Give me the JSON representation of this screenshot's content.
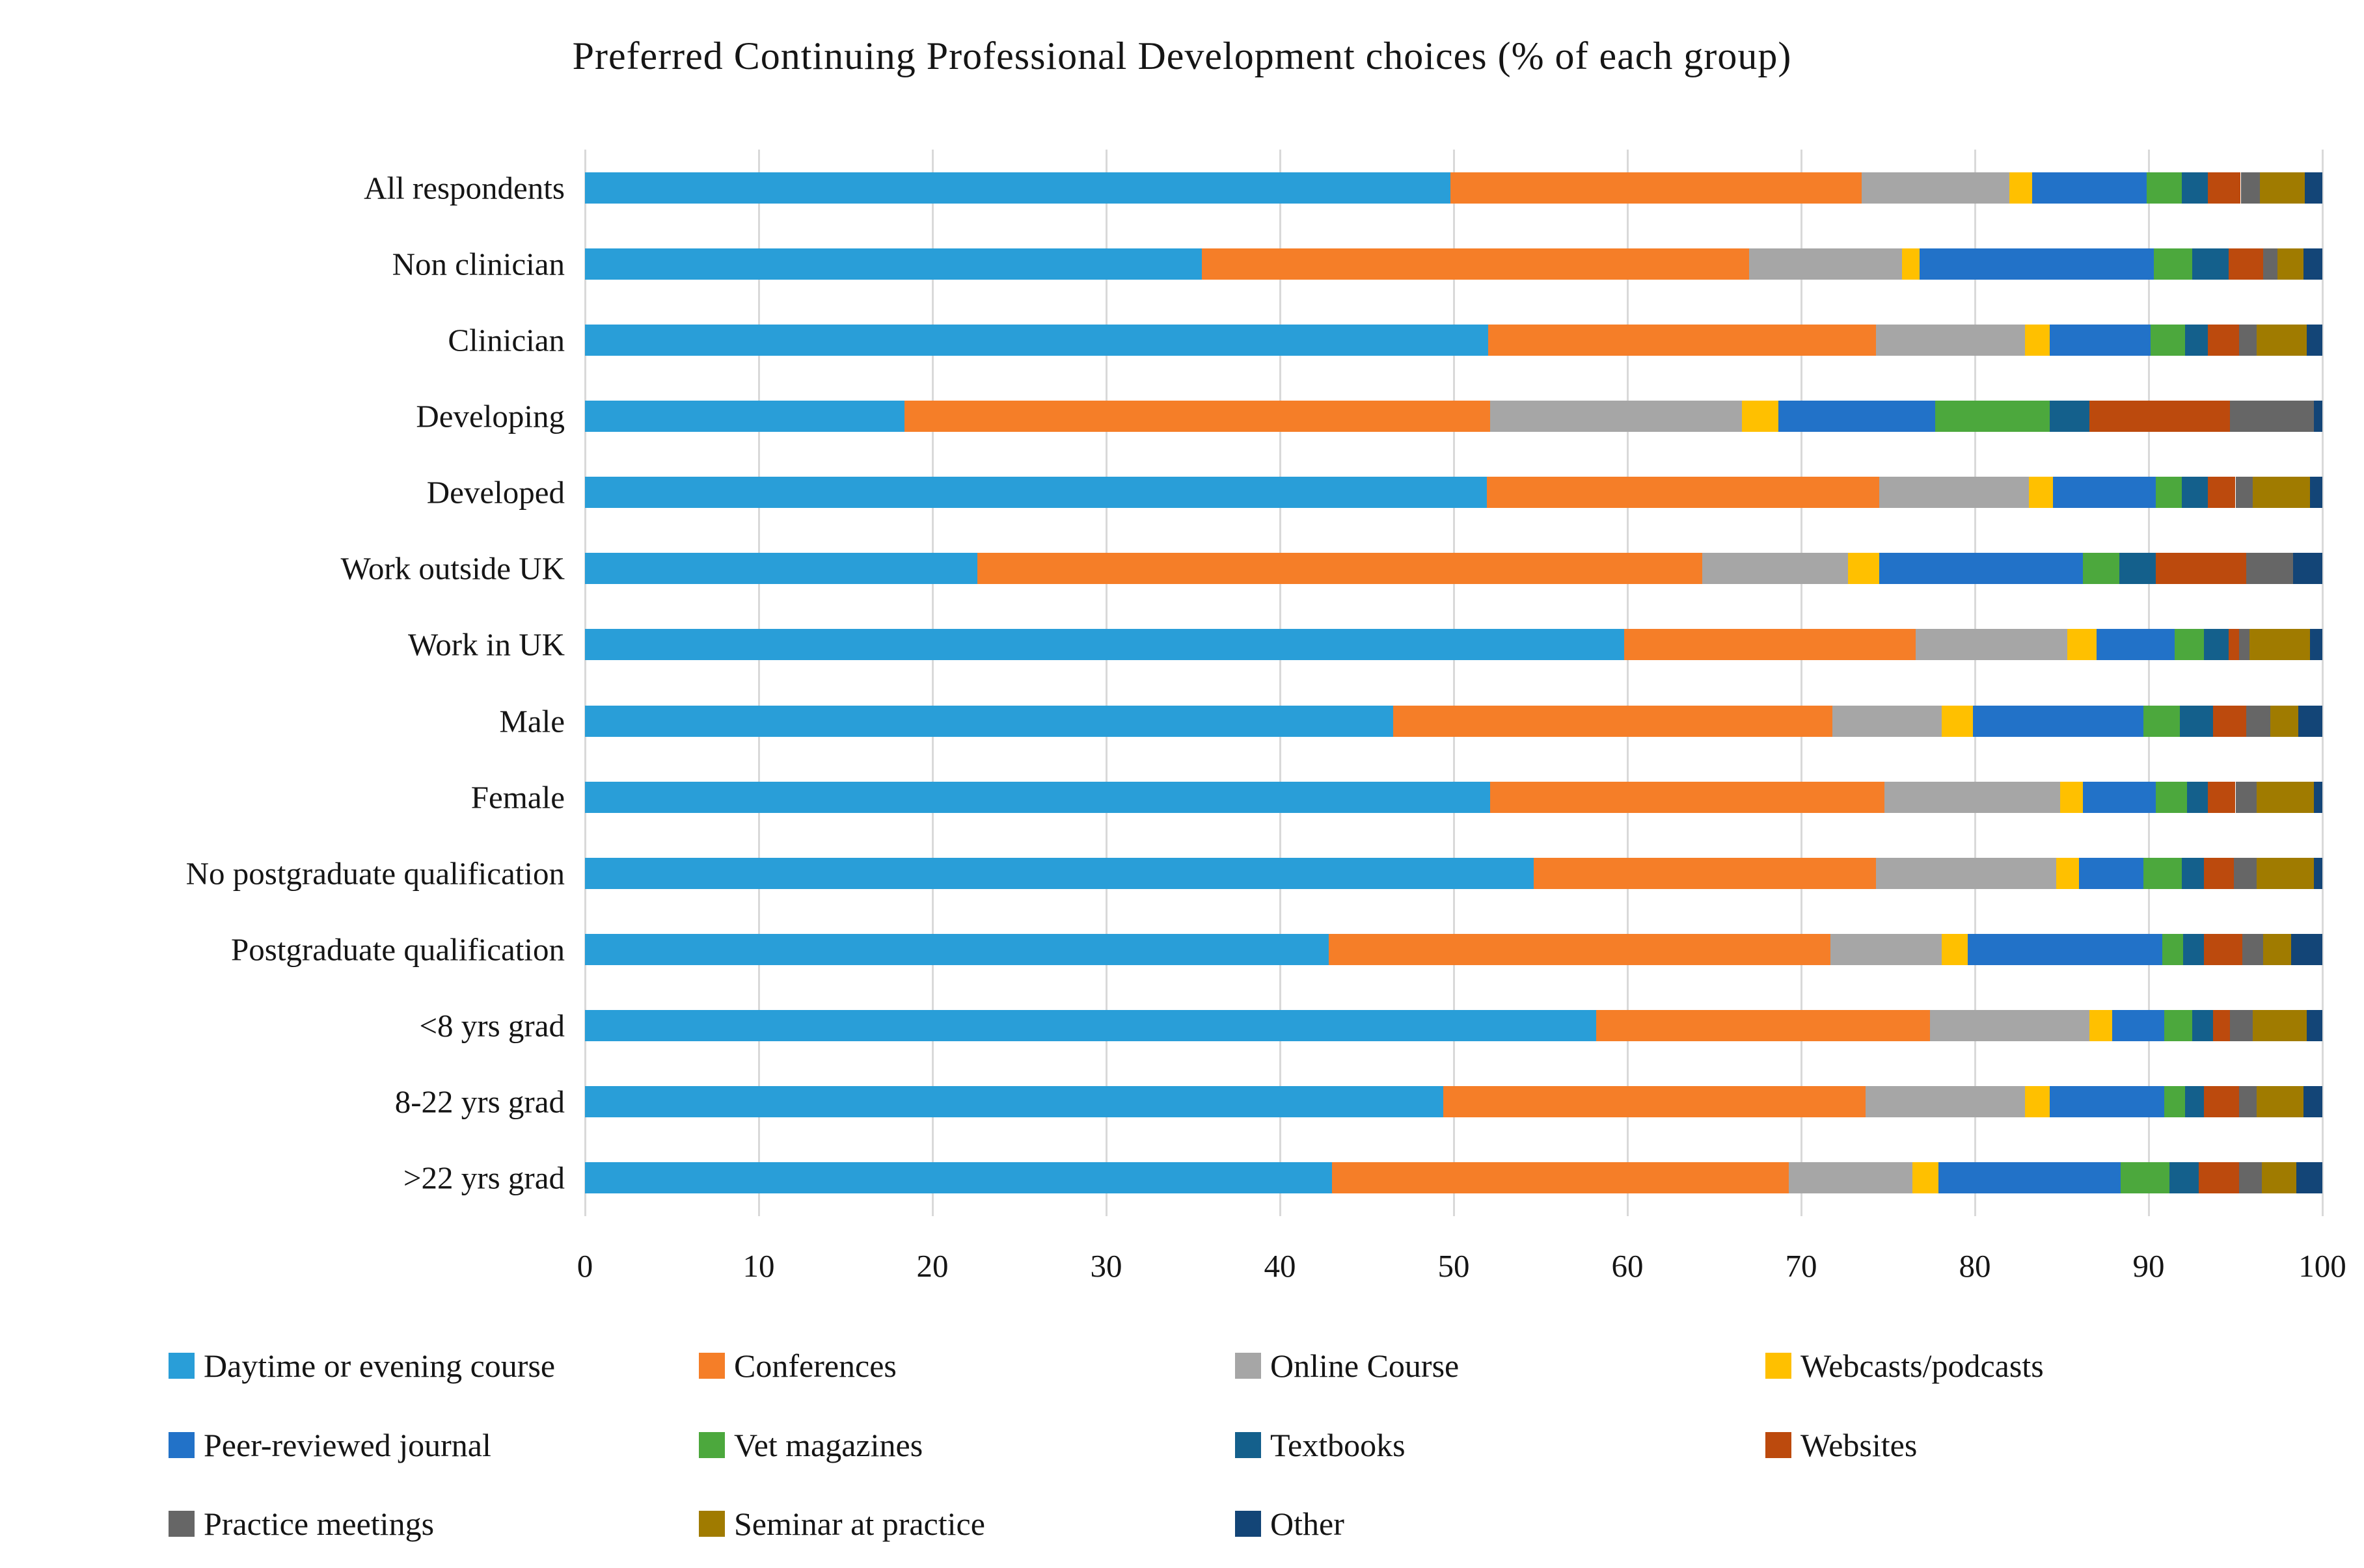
{
  "chart_data": {
    "type": "bar",
    "orientation": "horizontal-stacked",
    "title": "Preferred Continuing Professional Development choices (% of each group)",
    "xlabel": "",
    "ylabel": "",
    "xlim": [
      0,
      100
    ],
    "x_ticks": [
      0,
      10,
      20,
      30,
      40,
      50,
      60,
      70,
      80,
      90,
      100
    ],
    "grid": true,
    "legend_position": "bottom",
    "gridline_color": "#d9d9d9",
    "categories": [
      "All respondents",
      "Non clinician",
      "Clinician",
      "Developing",
      "Developed",
      "Work outside UK",
      "Work in UK",
      "Male",
      "Female",
      "No postgraduate qualification",
      "Postgraduate qualification",
      "<8 yrs grad",
      "8-22 yrs grad",
      ">22 yrs grad"
    ],
    "series": [
      {
        "name": "Daytime or evening course",
        "color": "#299ED8",
        "values": [
          49.8,
          35.5,
          52.0,
          18.4,
          51.9,
          22.6,
          59.8,
          46.5,
          52.1,
          54.6,
          42.8,
          58.2,
          49.4,
          43.0
        ]
      },
      {
        "name": "Conferences",
        "color": "#F57E28",
        "values": [
          23.7,
          31.5,
          22.3,
          33.7,
          22.6,
          41.7,
          16.8,
          25.3,
          22.7,
          19.7,
          28.9,
          19.2,
          24.3,
          26.3
        ]
      },
      {
        "name": "Online Course",
        "color": "#A6A6A6",
        "values": [
          8.5,
          8.8,
          8.6,
          14.5,
          8.6,
          8.4,
          8.7,
          6.3,
          10.1,
          10.4,
          6.4,
          9.2,
          9.2,
          7.1
        ]
      },
      {
        "name": "Webcasts/podcasts",
        "color": "#FFC000",
        "values": [
          1.3,
          1.0,
          1.4,
          2.1,
          1.4,
          1.8,
          1.7,
          1.8,
          1.3,
          1.3,
          1.5,
          1.3,
          1.4,
          1.5
        ]
      },
      {
        "name": "Peer-reviewed journal",
        "color": "#2272C8",
        "values": [
          6.6,
          13.5,
          5.8,
          9.0,
          5.9,
          11.7,
          4.5,
          9.8,
          4.2,
          3.7,
          11.2,
          3.0,
          6.6,
          10.5
        ]
      },
      {
        "name": "Vet magazines",
        "color": "#4CA83D",
        "values": [
          2.0,
          2.2,
          2.0,
          6.6,
          1.5,
          2.1,
          1.7,
          2.1,
          1.8,
          2.2,
          1.2,
          1.6,
          1.2,
          2.8
        ]
      },
      {
        "name": "Textbooks",
        "color": "#14608C",
        "values": [
          1.5,
          2.1,
          1.3,
          2.3,
          1.5,
          2.1,
          1.4,
          1.9,
          1.2,
          1.3,
          1.2,
          1.2,
          1.1,
          1.7
        ]
      },
      {
        "name": "Websites",
        "color": "#BC4A0D",
        "values": [
          1.9,
          2.0,
          1.8,
          8.1,
          1.6,
          5.2,
          0.6,
          1.9,
          1.6,
          1.7,
          2.2,
          1.0,
          2.0,
          2.3
        ]
      },
      {
        "name": "Practice meetings",
        "color": "#666666",
        "values": [
          1.1,
          0.8,
          1.0,
          4.8,
          1.0,
          2.7,
          0.6,
          1.4,
          1.2,
          1.3,
          1.2,
          1.3,
          1.0,
          1.3
        ]
      },
      {
        "name": "Seminar at practice",
        "color": "#A07B00",
        "values": [
          2.6,
          1.5,
          2.9,
          0.0,
          3.3,
          0.0,
          3.5,
          1.6,
          3.3,
          3.3,
          1.6,
          3.1,
          2.7,
          2.0
        ]
      },
      {
        "name": "Other",
        "color": "#134577",
        "values": [
          1.0,
          1.1,
          0.9,
          0.5,
          0.7,
          1.7,
          0.7,
          1.4,
          0.5,
          0.5,
          1.8,
          0.9,
          1.1,
          1.5
        ]
      }
    ]
  }
}
